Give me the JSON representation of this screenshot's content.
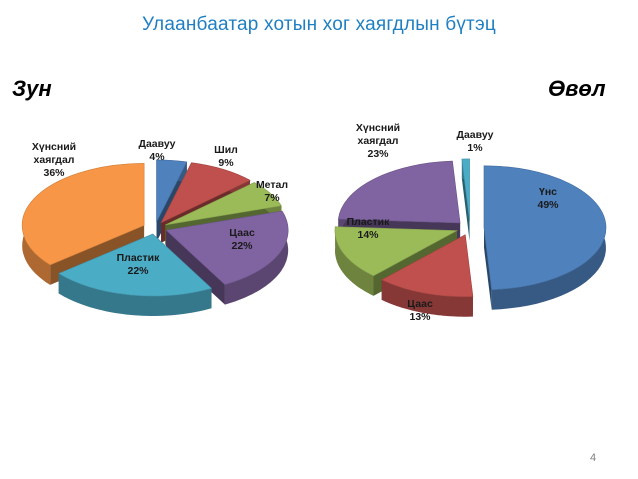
{
  "slide": {
    "title": "Улаанбаатар хотын хог хаягдлын бүтэц",
    "page_number": "4"
  },
  "colors": {
    "title": "#1f7fc1",
    "blue": "#4f81bd",
    "red": "#c0504d",
    "green": "#9bbb59",
    "purple": "#8064a2",
    "teal": "#4bacc6",
    "orange": "#f79646"
  },
  "chart_data": [
    {
      "type": "pie",
      "title": "Зун",
      "slices": [
        {
          "label_lines": [
            "Даавуу"
          ],
          "value": 4,
          "value_label": "4%",
          "color": "#4f81bd"
        },
        {
          "label_lines": [
            "Шил"
          ],
          "value": 9,
          "value_label": "9%",
          "color": "#c0504d"
        },
        {
          "label_lines": [
            "Метал"
          ],
          "value": 7,
          "value_label": "7%",
          "color": "#9bbb59"
        },
        {
          "label_lines": [
            "Цаас"
          ],
          "value": 22,
          "value_label": "22%",
          "color": "#8064a2"
        },
        {
          "label_lines": [
            "Пластик"
          ],
          "value": 22,
          "value_label": "22%",
          "color": "#4bacc6"
        },
        {
          "label_lines": [
            "Хүнсний",
            "хаягдал"
          ],
          "value": 36,
          "value_label": "36%",
          "color": "#f79646"
        }
      ]
    },
    {
      "type": "pie",
      "title": "Өвөл",
      "slices": [
        {
          "label_lines": [
            "Үнс"
          ],
          "value": 49,
          "value_label": "49%",
          "color": "#4f81bd"
        },
        {
          "label_lines": [
            "Цаас"
          ],
          "value": 13,
          "value_label": "13%",
          "color": "#c0504d"
        },
        {
          "label_lines": [
            "Пластик"
          ],
          "value": 14,
          "value_label": "14%",
          "color": "#9bbb59"
        },
        {
          "label_lines": [
            "Хүнсний",
            "хаягдал"
          ],
          "value": 23,
          "value_label": "23%",
          "color": "#8064a2"
        },
        {
          "label_lines": [
            "Даавуу"
          ],
          "value": 1,
          "value_label": "1%",
          "color": "#4bacc6"
        }
      ]
    }
  ]
}
